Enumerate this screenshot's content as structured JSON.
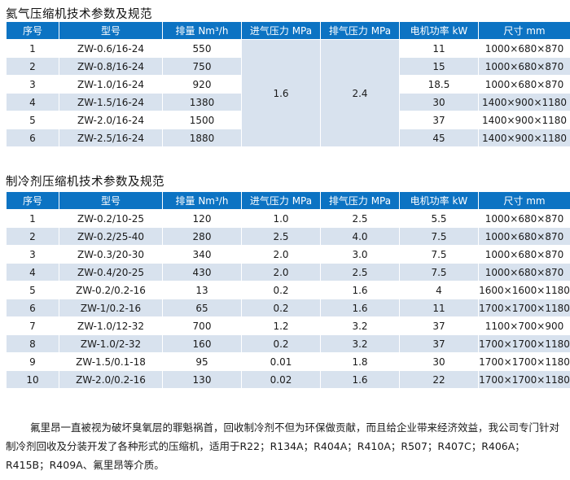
{
  "section1": {
    "title": "氦气压缩机技术参数及规范",
    "headers": [
      "序号",
      "型号",
      "排量 Nm³/h",
      "进气压力 MPa",
      "排气压力 MPa",
      "电机功率 kW",
      "尺寸 mm"
    ],
    "inlet_pressure": "1.6",
    "outlet_pressure": "2.4",
    "rows": [
      {
        "no": "1",
        "model": "ZW-0.6/16-24",
        "flow": "550",
        "power": "11",
        "size": "1000×680×870"
      },
      {
        "no": "2",
        "model": "ZW-0.8/16-24",
        "flow": "750",
        "power": "15",
        "size": "1000×680×870"
      },
      {
        "no": "3",
        "model": "ZW-1.0/16-24",
        "flow": "920",
        "power": "18.5",
        "size": "1000×680×870"
      },
      {
        "no": "4",
        "model": "ZW-1.5/16-24",
        "flow": "1380",
        "power": "30",
        "size": "1400×900×1180"
      },
      {
        "no": "5",
        "model": "ZW-2.0/16-24",
        "flow": "1500",
        "power": "37",
        "size": "1400×900×1180"
      },
      {
        "no": "6",
        "model": "ZW-2.5/16-24",
        "flow": "1880",
        "power": "45",
        "size": "1400×900×1180"
      }
    ]
  },
  "section2": {
    "title": "制冷剂压缩机技术参数及规范",
    "headers": [
      "序号",
      "型号",
      "排量 Nm³/h",
      "进气压力 MPa",
      "排气压力 MPa",
      "电机功率 kW",
      "尺寸 mm"
    ],
    "rows": [
      {
        "no": "1",
        "model": "ZW-0.2/10-25",
        "flow": "120",
        "inlet": "1.0",
        "outlet": "2.5",
        "power": "5.5",
        "size": "1000×680×870"
      },
      {
        "no": "2",
        "model": "ZW-0.2/25-40",
        "flow": "280",
        "inlet": "2.5",
        "outlet": "4.0",
        "power": "7.5",
        "size": "1000×680×870"
      },
      {
        "no": "3",
        "model": "ZW-0.3/20-30",
        "flow": "340",
        "inlet": "2.0",
        "outlet": "3.0",
        "power": "7.5",
        "size": "1000×680×870"
      },
      {
        "no": "4",
        "model": "ZW-0.4/20-25",
        "flow": "430",
        "inlet": "2.0",
        "outlet": "2.5",
        "power": "7.5",
        "size": "1000×680×870"
      },
      {
        "no": "5",
        "model": "ZW-0.2/0.2-16",
        "flow": "13",
        "inlet": "0.2",
        "outlet": "1.6",
        "power": "4",
        "size": "1600×1600×1180"
      },
      {
        "no": "6",
        "model": "ZW-1/0.2-16",
        "flow": "65",
        "inlet": "0.2",
        "outlet": "1.6",
        "power": "11",
        "size": "1700×1700×1180"
      },
      {
        "no": "7",
        "model": "ZW-1.0/12-32",
        "flow": "700",
        "inlet": "1.2",
        "outlet": "3.2",
        "power": "37",
        "size": "1100×700×900"
      },
      {
        "no": "8",
        "model": "ZW-1.0/2-32",
        "flow": "160",
        "inlet": "0.2",
        "outlet": "3.2",
        "power": "37",
        "size": "1700×1700×1180"
      },
      {
        "no": "9",
        "model": "ZW-1.5/0.1-18",
        "flow": "95",
        "inlet": "0.01",
        "outlet": "1.8",
        "power": "30",
        "size": "1700×1700×1180"
      },
      {
        "no": "10",
        "model": "ZW-2.0/0.2-16",
        "flow": "130",
        "inlet": "0.02",
        "outlet": "1.6",
        "power": "22",
        "size": "1700×1700×1180"
      }
    ]
  },
  "note": "氟里昂一直被视为破坏臭氧层的罪魁祸首，回收制冷剂不但为环保做贡献，而且给企业带来经济效益，我公司专门针对制冷剂回收及分装开发了各种形式的压缩机，适用于R22；R134A；R404A；R410A；R507；R407C；R406A；R415B；R409A、氟里昂等介质。",
  "colors": {
    "header_bg": "#0c73c3",
    "stripe_bg": "#d8e2ee"
  }
}
